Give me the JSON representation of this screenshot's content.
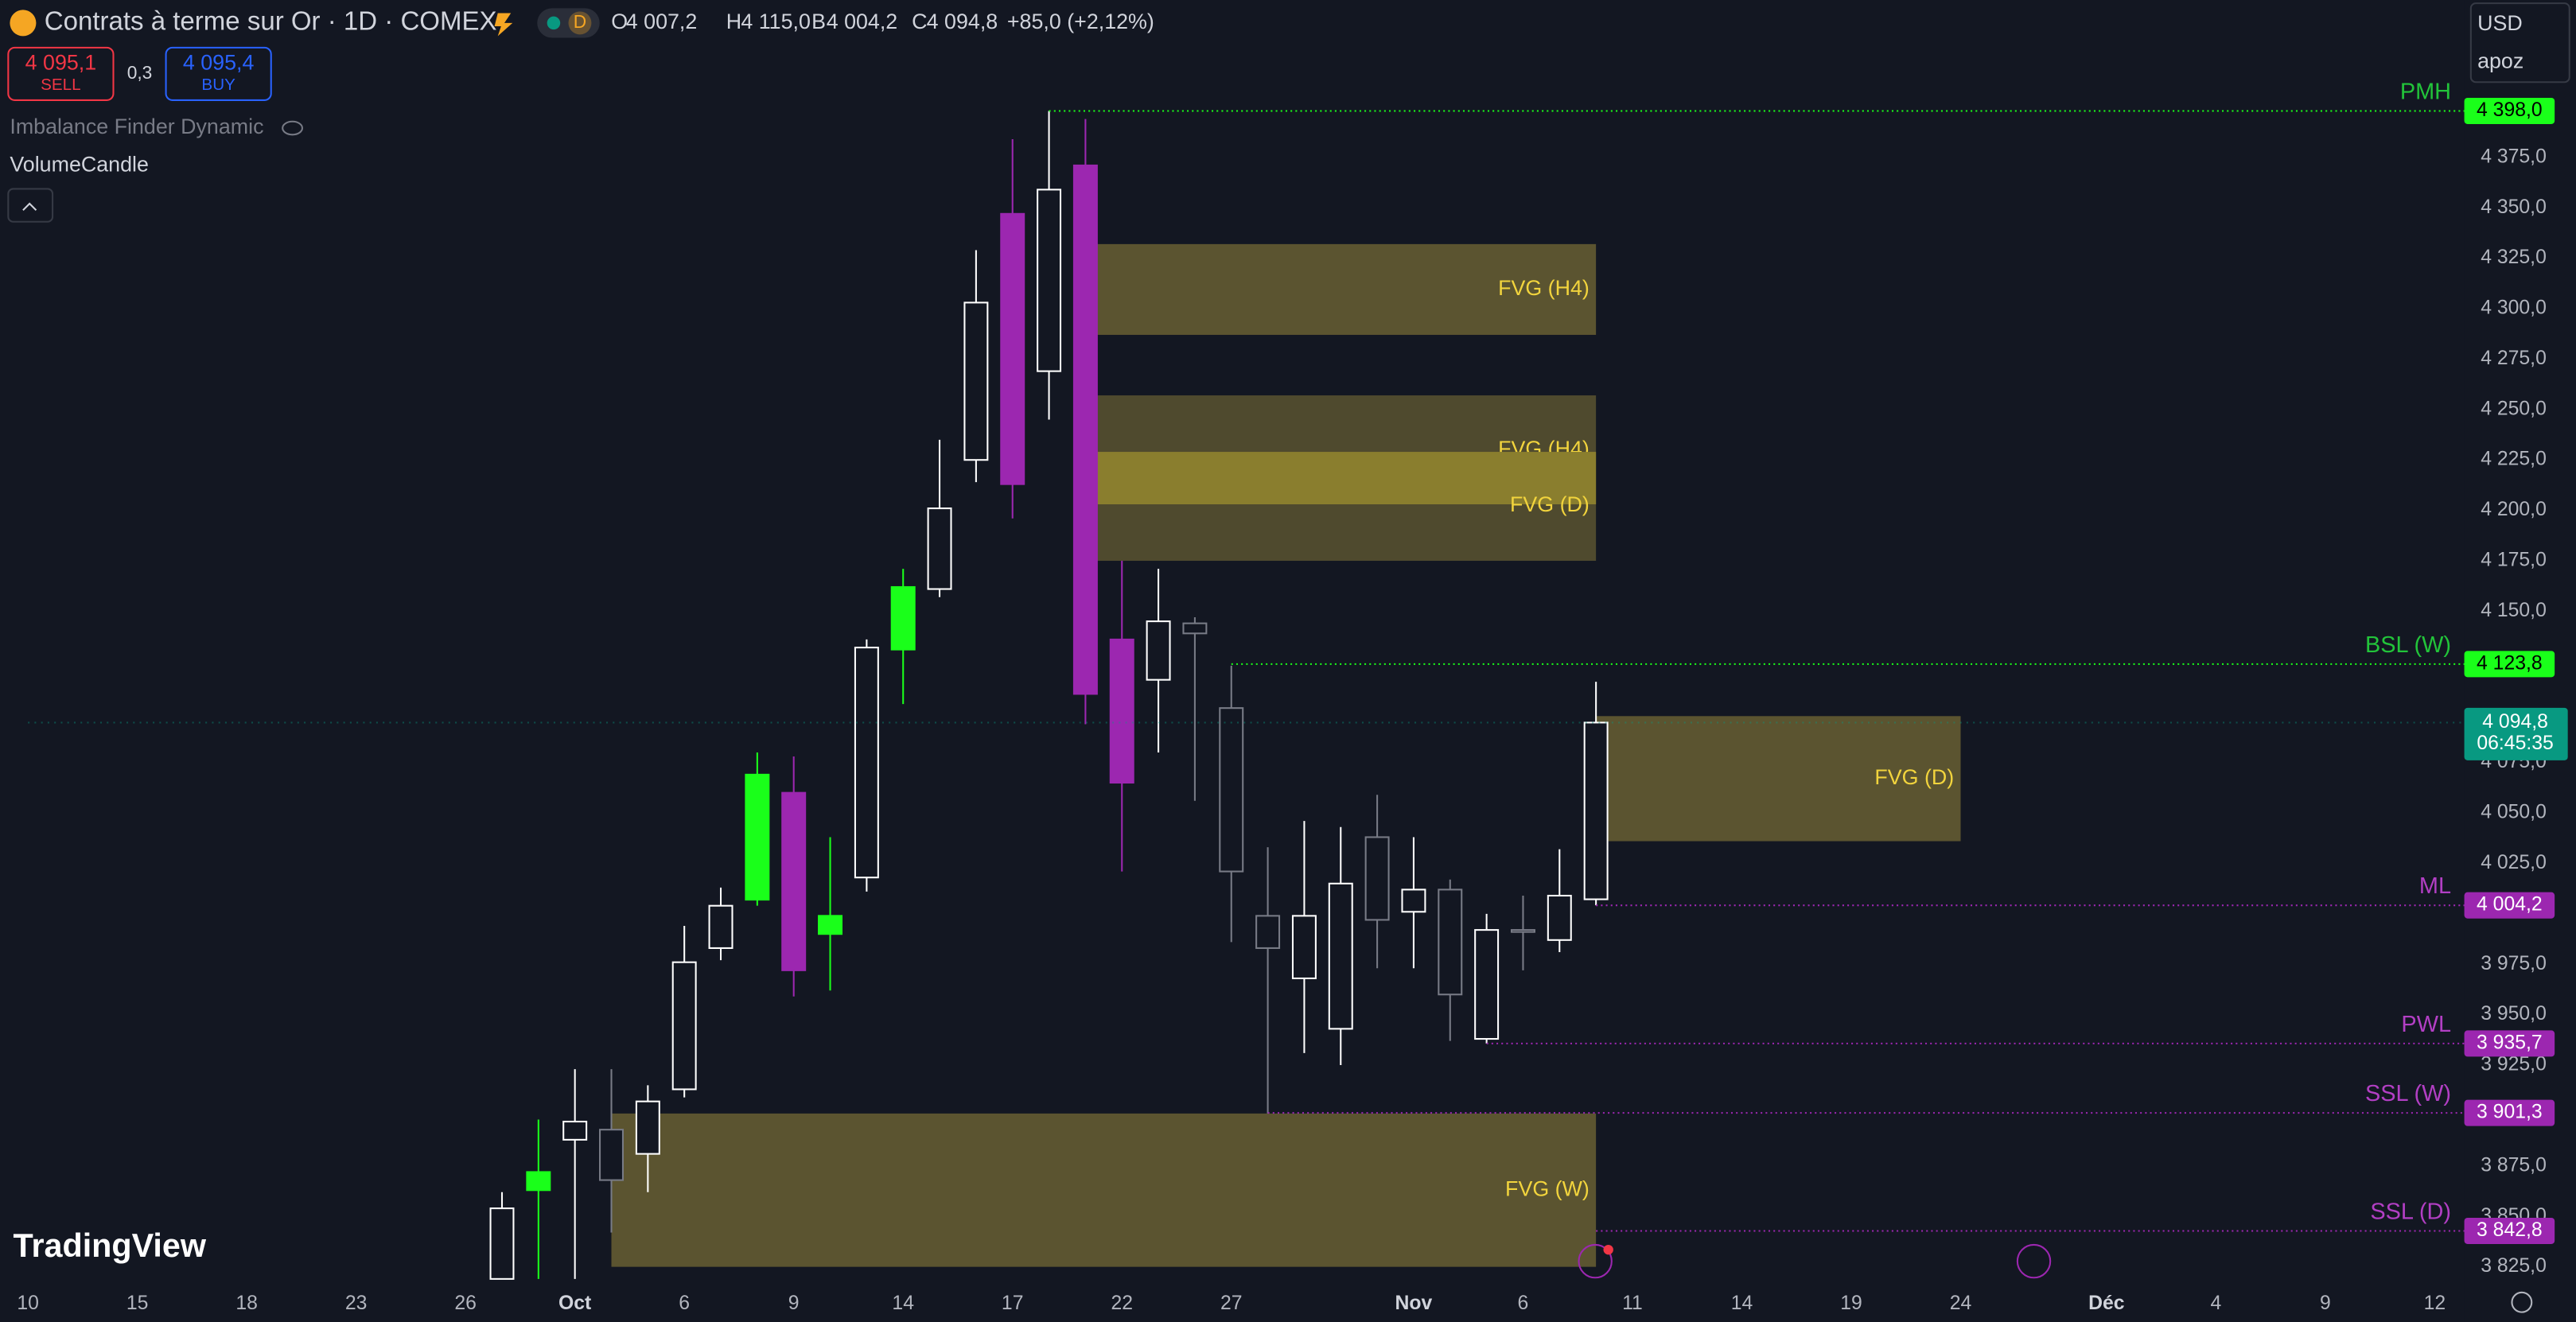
{
  "header": {
    "symbol": "Contrats à terme sur Or · 1D · COMEX",
    "interval_badge": "D",
    "ohlc": [
      {
        "key": "O",
        "value": "4 007,2"
      },
      {
        "key": "H",
        "value": "4 115,0"
      },
      {
        "key": "B",
        "value": "4 004,2"
      },
      {
        "key": "C",
        "value": "4 094,8"
      }
    ],
    "change": "+85,0 (+2,12%)"
  },
  "trade": {
    "sell_price": "4 095,1",
    "sell": "SELL",
    "spread": "0,3",
    "buy_price": "4 095,4",
    "buy": "BUY"
  },
  "indicators": [
    "Imbalance Finder Dynamic",
    "VolumeCandle"
  ],
  "logo": "TradingView",
  "currency": "USD",
  "account": "apoz",
  "chart_data": {
    "type": "candlestick",
    "categories": [
      "10",
      null,
      null,
      "15",
      null,
      null,
      "18",
      null,
      null,
      "23",
      null,
      null,
      "26",
      null,
      null,
      "Oct",
      null,
      null,
      "6",
      null,
      null,
      "9",
      null,
      null,
      "14",
      null,
      null,
      "17",
      null,
      null,
      "22",
      null,
      null,
      "27",
      null,
      null,
      null,
      null,
      "Nov",
      null,
      null,
      "6",
      null,
      null,
      "11",
      null,
      null,
      "14",
      null,
      null,
      "19",
      null,
      null,
      "24",
      null,
      null,
      null,
      "Déc",
      null,
      null,
      "4",
      null,
      null,
      "9",
      null,
      null,
      "12"
    ],
    "open": [
      null,
      null,
      null,
      null,
      null,
      null,
      null,
      null,
      null,
      null,
      null,
      null,
      null,
      3819,
      3863,
      3888,
      3893,
      3881,
      3913,
      3983,
      4007,
      4060,
      3990,
      4018,
      4131,
      4161,
      4225,
      4347,
      4269,
      4371,
      4136,
      4116,
      4139,
      4102,
      3999,
      3968,
      3943,
      3997,
      4001,
      4012,
      3938,
      3992,
      3987,
      4007.2,
      null,
      null,
      null,
      null,
      null,
      null,
      null,
      null,
      null,
      null,
      null,
      null,
      null,
      null,
      null,
      null,
      null,
      null,
      null,
      null,
      null,
      null,
      null
    ],
    "high": [
      null,
      null,
      null,
      null,
      null,
      null,
      null,
      null,
      null,
      null,
      null,
      null,
      null,
      3862,
      3898,
      3923,
      3923,
      3915,
      3994,
      4013,
      4080,
      4078,
      4038,
      4136,
      4171,
      4235,
      4329,
      4384,
      4398,
      4394,
      4175,
      4171,
      4147,
      4123,
      4033,
      4046,
      4043,
      4059,
      4038,
      4017,
      4000,
      4009,
      4032,
      4115,
      null,
      null,
      null,
      null,
      null,
      null,
      null,
      null,
      null,
      null,
      null,
      null,
      null,
      null,
      null,
      null,
      null,
      null,
      null,
      null,
      null,
      null,
      null
    ],
    "low": [
      null,
      null,
      null,
      null,
      null,
      null,
      null,
      null,
      null,
      null,
      null,
      null,
      null,
      3819,
      3819,
      3819,
      3842,
      3862,
      3909,
      3977,
      4004,
      3959,
      3962,
      4011,
      4104,
      4157,
      4214,
      4196,
      4245,
      4094,
      4021,
      4080,
      4056,
      3986,
      3901,
      3931,
      3925,
      3973,
      3973,
      3937,
      3935.7,
      3972,
      3981,
      4004.2,
      null,
      null,
      null,
      null,
      null,
      null,
      null,
      null,
      null,
      null,
      null,
      null,
      null,
      null,
      null,
      null,
      null,
      null,
      null,
      null,
      null,
      null,
      null
    ],
    "close": [
      null,
      null,
      null,
      null,
      null,
      null,
      null,
      null,
      null,
      null,
      null,
      null,
      null,
      3854,
      3872,
      3897,
      3868,
      3907,
      3976,
      4004,
      4069,
      3972,
      3999,
      4132,
      4162,
      4201,
      4303,
      4213,
      4359,
      4109,
      4065,
      4145,
      4144,
      4021,
      3983,
      3999,
      4015,
      4038,
      4012,
      3960,
      3992,
      3991,
      4009,
      4094.8,
      null,
      null,
      null,
      null,
      null,
      null,
      null,
      null,
      null,
      null,
      null,
      null,
      null,
      null,
      null,
      null,
      null,
      null,
      null,
      null,
      null,
      null,
      null
    ],
    "colors": [
      null,
      null,
      null,
      null,
      null,
      null,
      null,
      null,
      null,
      null,
      null,
      null,
      null,
      "#ffffff",
      "#1aff1a",
      "#ffffff",
      "#787b86",
      "#ffffff",
      "#ffffff",
      "#ffffff",
      "#1aff1a",
      "#9c27b0",
      "#1aff1a",
      "#ffffff",
      "#1aff1a",
      "#ffffff",
      "#ffffff",
      "#9c27b0",
      "#ffffff",
      "#9c27b0",
      "#9c27b0",
      "#ffffff",
      "#787b86",
      "#787b86",
      "#787b86",
      "#ffffff",
      "#ffffff",
      "#787b86",
      "#ffffff",
      "#787b86",
      "#ffffff",
      "#787b86",
      "#ffffff",
      "#ffffff",
      null,
      null,
      null,
      null,
      null,
      null,
      null,
      null,
      null,
      null,
      null,
      null,
      null,
      null,
      null,
      null,
      null,
      null,
      null,
      null,
      null,
      null,
      null
    ],
    "ylim": [
      3818,
      4453
    ],
    "yticks": [
      {
        "value": 4375,
        "label": "4 375,0"
      },
      {
        "value": 4350,
        "label": "4 350,0"
      },
      {
        "value": 4325,
        "label": "4 325,0"
      },
      {
        "value": 4300,
        "label": "4 300,0"
      },
      {
        "value": 4275,
        "label": "4 275,0"
      },
      {
        "value": 4250,
        "label": "4 250,0"
      },
      {
        "value": 4225,
        "label": "4 225,0"
      },
      {
        "value": 4200,
        "label": "4 200,0"
      },
      {
        "value": 4175,
        "label": "4 175,0"
      },
      {
        "value": 4150,
        "label": "4 150,0"
      },
      {
        "value": 4075,
        "label": "4 075,0"
      },
      {
        "value": 4050,
        "label": "4 050,0"
      },
      {
        "value": 4025,
        "label": "4 025,0"
      },
      {
        "value": 3975,
        "label": "3 975,0"
      },
      {
        "value": 3950,
        "label": "3 950,0"
      },
      {
        "value": 3925,
        "label": "3 925,0"
      },
      {
        "value": 3875,
        "label": "3 875,0"
      },
      {
        "value": 3850,
        "label": "3 850,0"
      },
      {
        "value": 3825,
        "label": "3 825,0"
      }
    ],
    "grid": false,
    "zones": [
      {
        "name": "FVG (H4)",
        "top": 4332,
        "bottom": 4287,
        "from": 29.3,
        "to": 43,
        "color": "#5b5430"
      },
      {
        "name": "FVG (H4)",
        "top": 4257,
        "bottom": 4175,
        "from": 29.3,
        "to": 43,
        "color": "#4f4a2e"
      },
      {
        "name": "FVG (D)",
        "top": 4229,
        "bottom": 4203,
        "from": 29.3,
        "to": 43,
        "color": "#8a7e2e"
      },
      {
        "name": "FVG (D)",
        "top": 4098,
        "bottom": 4036,
        "from": 43,
        "to": 53,
        "color": "#5b5430"
      },
      {
        "name": "FVG (W)",
        "top": 3901,
        "bottom": 3825,
        "from": 16,
        "to": 43,
        "color": "#5b5430"
      }
    ],
    "zone_text_color": "#f2d43d",
    "levels": [
      {
        "name": "PMH",
        "value": 4398.0,
        "label": "4 398,0",
        "color": "#1aff1a",
        "from": 28
      },
      {
        "name": "BSL (W)",
        "value": 4123.8,
        "label": "4 123,8",
        "color": "#1aff1a",
        "from": 33
      },
      {
        "name": "ML",
        "value": 4004.2,
        "label": "4 004,2",
        "color": "#9c27b0",
        "from": 43
      },
      {
        "name": "PWL",
        "value": 3935.7,
        "label": "3 935,7",
        "color": "#9c27b0",
        "from": 40
      },
      {
        "name": "SSL (W)",
        "value": 3901.3,
        "label": "3 901,3",
        "color": "#9c27b0",
        "from": 34
      },
      {
        "name": "SSL (D)",
        "value": 3842.8,
        "label": "3 842,8",
        "color": "#9c27b0",
        "from": 43
      }
    ],
    "last_price": {
      "value": 4094.8,
      "label": "4 094,8",
      "countdown": "06:45:35",
      "color": "#089981"
    }
  }
}
